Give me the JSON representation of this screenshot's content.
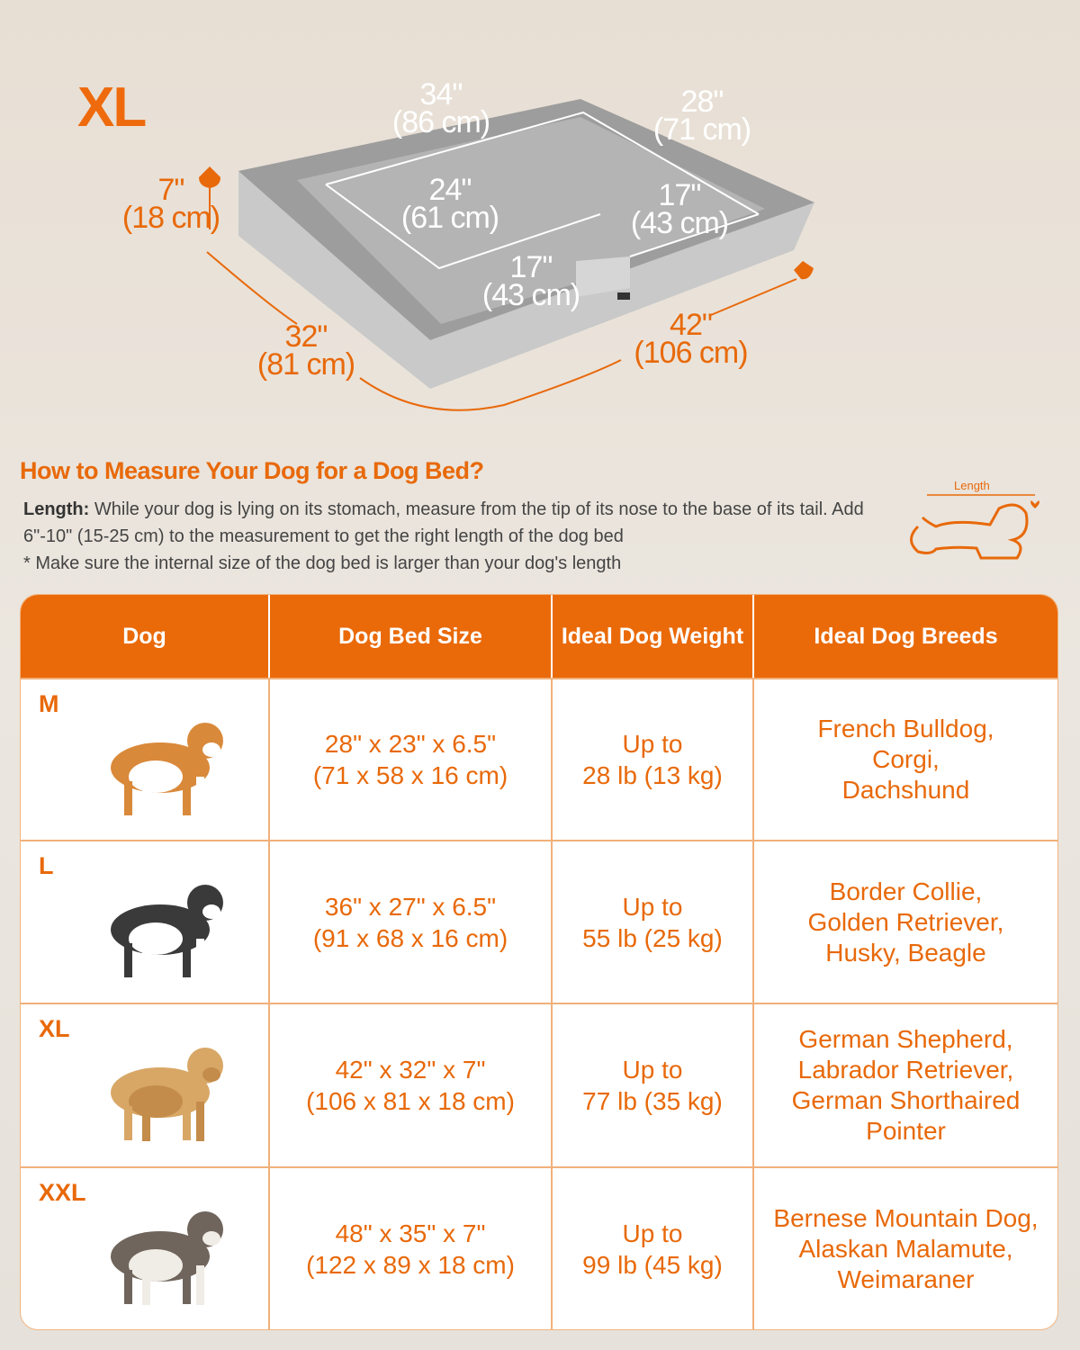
{
  "hero": {
    "size_label": "XL",
    "dimensions": {
      "outer_width": {
        "in": "34\"",
        "cm": "(86 cm)"
      },
      "outer_depth": {
        "in": "28\"",
        "cm": "(71 cm)"
      },
      "inner_width": {
        "in": "24\"",
        "cm": "(61 cm)"
      },
      "inner_depth": {
        "in": "17\"",
        "cm": "(43 cm)"
      },
      "front_opening": {
        "in": "17\"",
        "cm": "(43 cm)"
      },
      "height": {
        "in": "7\"",
        "cm": "(18 cm)"
      },
      "width": {
        "in": "32\"",
        "cm": "(81 cm)"
      },
      "length": {
        "in": "42\"",
        "cm": "(106 cm)"
      }
    }
  },
  "guide": {
    "title": "How to Measure Your Dog for a Dog Bed?",
    "length_label": "Length:",
    "length_text": "While your dog is lying on its stomach, measure from the tip of its nose to the base of its tail. Add 6\"-10\" (15-25 cm) to the measurement to get the right length of the dog bed",
    "note": "* Make sure the internal size of the dog bed is larger than your dog's length",
    "icon_label": "Length"
  },
  "table": {
    "headers": [
      "Dog",
      "Dog Bed Size",
      "Ideal Dog Weight",
      "Ideal Dog Breeds"
    ],
    "rows": [
      {
        "size": "M",
        "dog": "corgi",
        "bed_in": "28\" x 23\" x 6.5\"",
        "bed_cm": "(71 x 58 x 16 cm)",
        "weight_1": "Up to",
        "weight_2": "28 lb (13 kg)",
        "breeds": "French Bulldog,\nCorgi,\nDachshund"
      },
      {
        "size": "L",
        "dog": "border-collie",
        "bed_in": "36\" x 27\" x 6.5\"",
        "bed_cm": "(91 x 68 x 16 cm)",
        "weight_1": "Up to",
        "weight_2": "55 lb (25 kg)",
        "breeds": "Border Collie,\nGolden Retriever,\nHusky, Beagle"
      },
      {
        "size": "XL",
        "dog": "labrador",
        "bed_in": "42\" x 32\" x 7\"",
        "bed_cm": "(106 x 81 x 18 cm)",
        "weight_1": "Up to",
        "weight_2": "77 lb (35 kg)",
        "breeds": "German Shepherd,\nLabrador Retriever,\nGerman Shorthaired\nPointer"
      },
      {
        "size": "XXL",
        "dog": "malamute",
        "bed_in": "48\" x 35\" x 7\"",
        "bed_cm": "(122 x 89 x 18 cm)",
        "weight_1": "Up to",
        "weight_2": "99 lb (45 kg)",
        "breeds": "Bernese Mountain Dog,\nAlaskan Malamute,\nWeimaraner"
      }
    ]
  },
  "colors": {
    "accent": "#e8690a",
    "header_bg": "#ea6a09",
    "background": "#e9e3db"
  }
}
